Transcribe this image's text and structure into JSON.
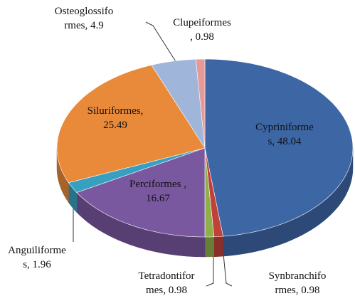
{
  "chart_data": {
    "type": "pie3d",
    "values": [
      48.04,
      0.98,
      0.98,
      16.67,
      1.96,
      25.49,
      4.9,
      0.98
    ],
    "value_labels": [
      "Cypriniforme\ns, 48.04",
      "Synbranchifo\nrmes, 0.98",
      "Tetradontifor\nmes, 0.98",
      "Perciformes ,\n16.67",
      "Anguiliforme\ns, 1.96",
      "Siluriformes,\n25.49",
      "Osteoglossifo\nrmes, 4.9",
      "Clupeiformes\n, 0.98"
    ],
    "colors": [
      "#3d66a5",
      "#c0403a",
      "#8fb048",
      "#7a58a0",
      "#37a0c0",
      "#e9893a",
      "#9fb5da",
      "#e59a9a"
    ]
  }
}
